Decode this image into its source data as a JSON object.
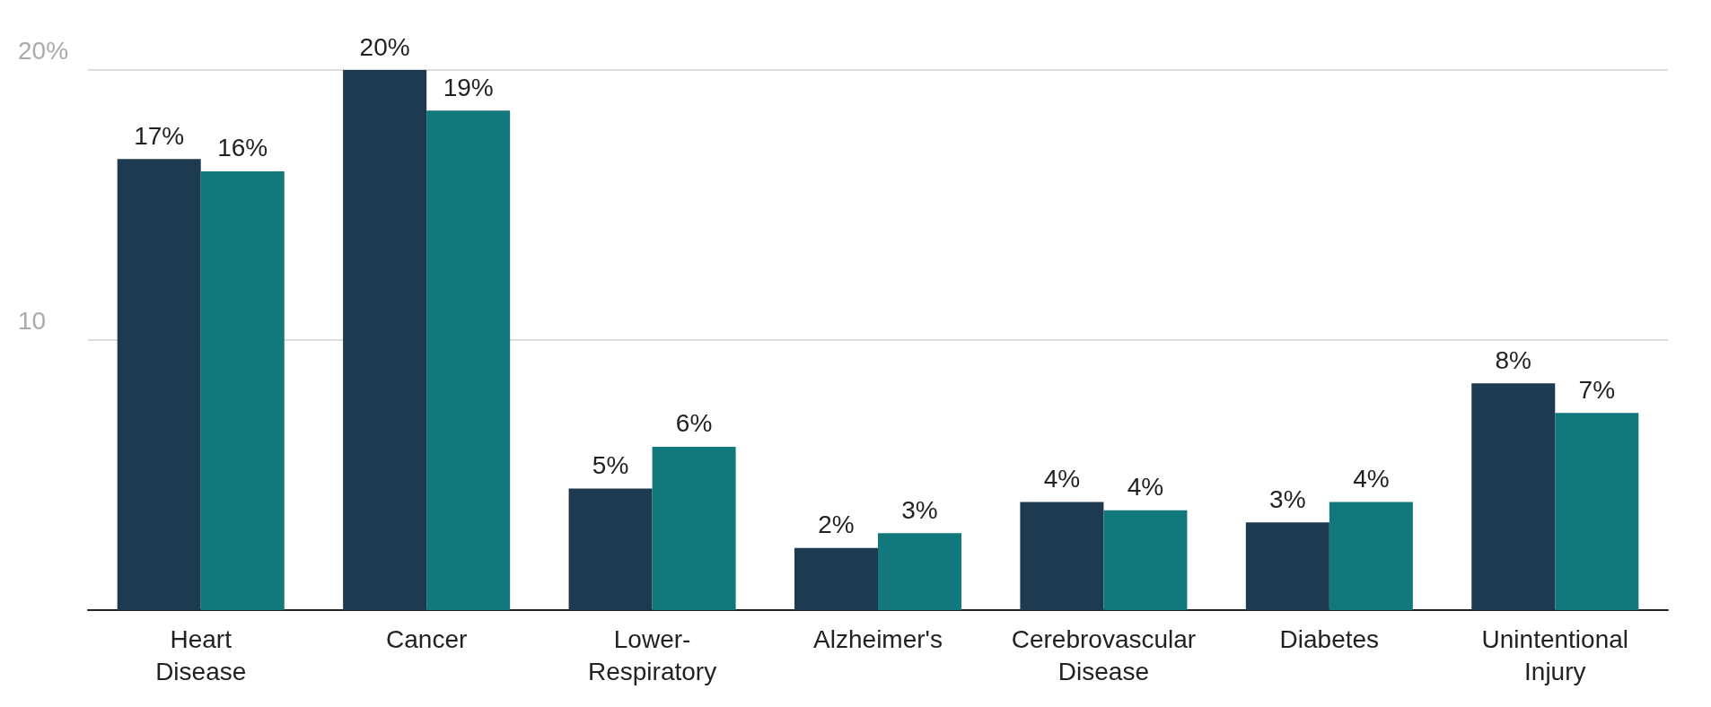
{
  "chart_data": {
    "type": "bar",
    "categories": [
      "Heart\nDisease",
      "Cancer",
      "Lower-\nRespiratory",
      "Alzheimer's",
      "Cerebrovascular\nDisease",
      "Diabetes",
      "Unintentional\nInjury"
    ],
    "series": [
      {
        "color": "#1e3a50",
        "values": [
          16.7,
          20.0,
          4.5,
          2.3,
          4.0,
          3.25,
          8.4
        ],
        "value_labels": [
          "17%",
          "20%",
          "5%",
          "2%",
          "4%",
          "3%",
          "8%"
        ]
      },
      {
        "color": "#11787b",
        "values": [
          16.25,
          18.5,
          6.05,
          2.85,
          3.7,
          4.0,
          7.3
        ],
        "value_labels": [
          "16%",
          "19%",
          "6%",
          "3%",
          "4%",
          "4%",
          "7%"
        ]
      }
    ],
    "ylim": [
      0,
      20
    ],
    "yticks": [
      {
        "value": 10,
        "label": "10"
      },
      {
        "value": 20,
        "label": "20%"
      }
    ],
    "grid": "y"
  }
}
